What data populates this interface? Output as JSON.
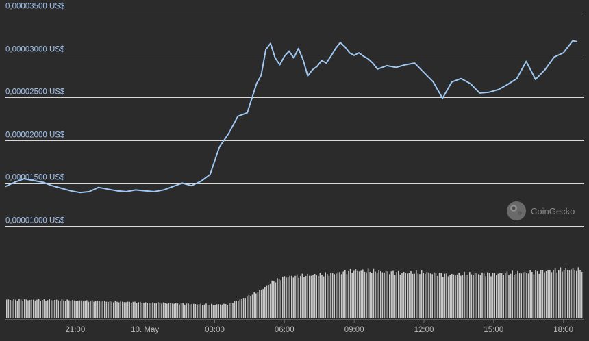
{
  "watermark": {
    "text": "CoinGecko",
    "icon": "coingecko-logo-icon"
  },
  "colors": {
    "background": "#2b2b2b",
    "price_line": "#9fc8f2",
    "gridline": "#d9d9d9",
    "volume_bars": "#c9c9c9",
    "y_label": "#9fc3ef",
    "x_label": "#bdbdbd"
  },
  "chart_data": {
    "type": "line",
    "title": "",
    "xlabel": "",
    "ylabel": "",
    "y_unit": "US$",
    "ylim": [
      1e-05,
      3.5e-05
    ],
    "y_ticks": [
      {
        "value": 3.5e-05,
        "label": "0,00003500 US$"
      },
      {
        "value": 3e-05,
        "label": "0,00003000 US$"
      },
      {
        "value": 2.5e-05,
        "label": "0,00002500 US$"
      },
      {
        "value": 2e-05,
        "label": "0,00002000 US$"
      },
      {
        "value": 1.5e-05,
        "label": "0,00001500 US$"
      },
      {
        "value": 1e-05,
        "label": "0,00001000 US$"
      }
    ],
    "x_ticks": [
      {
        "hour": 3,
        "label": "21:00"
      },
      {
        "hour": 6,
        "label": "10. May"
      },
      {
        "hour": 9,
        "label": "03:00"
      },
      {
        "hour": 12,
        "label": "06:00"
      },
      {
        "hour": 15,
        "label": "09:00"
      },
      {
        "hour": 18,
        "label": "12:00"
      },
      {
        "hour": 21,
        "label": "15:00"
      },
      {
        "hour": 24,
        "label": "18:00"
      }
    ],
    "grid": true,
    "legend": "none",
    "series": [
      {
        "kind": "price",
        "x_hours": [
          0,
          0.4,
          0.8,
          1.2,
          1.6,
          2.0,
          2.4,
          2.8,
          3.2,
          3.6,
          4.0,
          4.4,
          4.8,
          5.2,
          5.6,
          6.0,
          6.4,
          6.8,
          7.2,
          7.6,
          8.0,
          8.4,
          8.8,
          9.2,
          9.6,
          10.0,
          10.4,
          10.8,
          11.0,
          11.2,
          11.4,
          11.6,
          11.8,
          12.0,
          12.2,
          12.4,
          12.6,
          12.8,
          13.0,
          13.2,
          13.4,
          13.6,
          13.8,
          14.0,
          14.2,
          14.4,
          14.6,
          14.8,
          15.0,
          15.2,
          15.4,
          15.6,
          15.8,
          16.0,
          16.4,
          16.8,
          17.2,
          17.6,
          18.0,
          18.4,
          18.8,
          19.2,
          19.6,
          20.0,
          20.4,
          20.8,
          21.2,
          21.6,
          22.0,
          22.4,
          22.8,
          23.2,
          23.6,
          24.0,
          24.4,
          24.6
        ],
        "y": [
          1.46e-05,
          1.51e-05,
          1.55e-05,
          1.53e-05,
          1.51e-05,
          1.47e-05,
          1.44e-05,
          1.41e-05,
          1.39e-05,
          1.4e-05,
          1.45e-05,
          1.43e-05,
          1.41e-05,
          1.4e-05,
          1.42e-05,
          1.41e-05,
          1.4e-05,
          1.42e-05,
          1.46e-05,
          1.5e-05,
          1.47e-05,
          1.52e-05,
          1.6e-05,
          1.92e-05,
          2.08e-05,
          2.28e-05,
          2.32e-05,
          2.66e-05,
          2.76e-05,
          3.06e-05,
          3.13e-05,
          2.96e-05,
          2.88e-05,
          2.98e-05,
          3.04e-05,
          2.96e-05,
          3.07e-05,
          2.94e-05,
          2.75e-05,
          2.82e-05,
          2.86e-05,
          2.93e-05,
          2.9e-05,
          2.98e-05,
          3.07e-05,
          3.14e-05,
          3.09e-05,
          3.02e-05,
          2.99e-05,
          3.02e-05,
          2.98e-05,
          2.95e-05,
          2.9e-05,
          2.83e-05,
          2.87e-05,
          2.85e-05,
          2.88e-05,
          2.9e-05,
          2.79e-05,
          2.68e-05,
          2.49e-05,
          2.68e-05,
          2.72e-05,
          2.66e-05,
          2.55e-05,
          2.56e-05,
          2.59e-05,
          2.65e-05,
          2.72e-05,
          2.92e-05,
          2.71e-05,
          2.82e-05,
          2.97e-05,
          3.02e-05,
          3.16e-05,
          3.15e-05
        ]
      },
      {
        "kind": "volume",
        "x_hours": [
          0,
          2,
          4,
          6,
          8,
          9,
          9.6,
          10,
          10.6,
          11,
          11.4,
          12,
          13,
          14,
          15,
          16,
          17,
          18,
          19,
          20,
          21,
          22,
          23,
          24,
          24.6
        ],
        "relative_height": [
          0.39,
          0.385,
          0.36,
          0.33,
          0.3,
          0.29,
          0.3,
          0.38,
          0.5,
          0.6,
          0.75,
          0.87,
          0.9,
          0.93,
          1.0,
          0.98,
          0.95,
          0.96,
          0.91,
          0.93,
          0.93,
          0.95,
          0.98,
          1.02,
          1.02
        ]
      }
    ]
  }
}
